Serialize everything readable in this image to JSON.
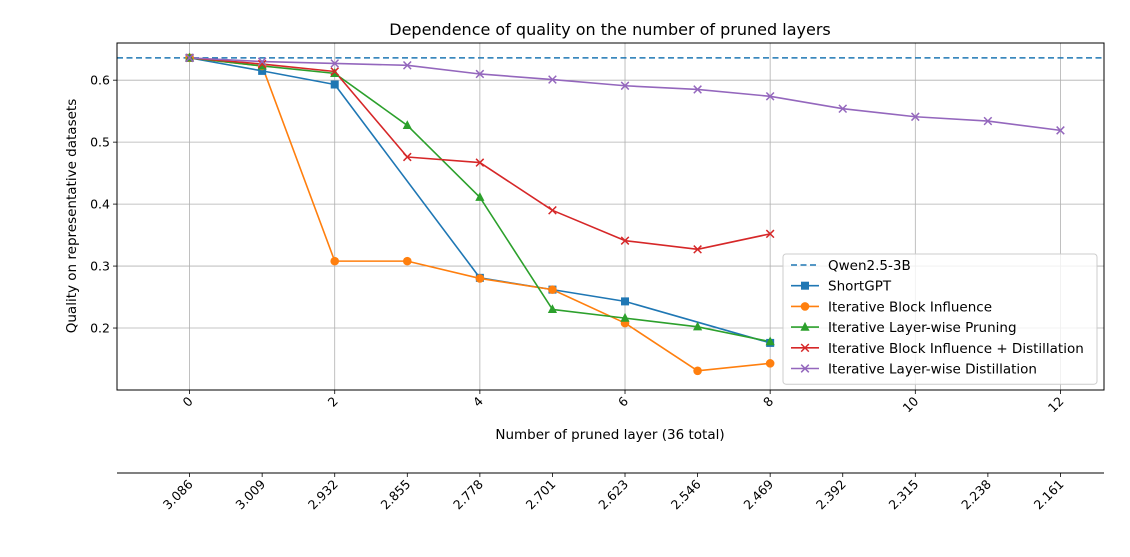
{
  "chart_data": {
    "type": "line",
    "title": "Dependence of quality on the number of pruned layers",
    "xlabel": "Number of pruned layer (36 total)",
    "ylabel": "Quality on representative datasets",
    "xlim": [
      -1,
      12.6
    ],
    "ylim": [
      0.1,
      0.66
    ],
    "grid": true,
    "legend_position": "lower-right",
    "x_ticks": [
      0,
      2,
      4,
      6,
      8,
      10,
      12
    ],
    "x_tick_labels": [
      "0",
      "2",
      "4",
      "6",
      "8",
      "10",
      "12"
    ],
    "y_ticks": [
      0.2,
      0.3,
      0.4,
      0.5,
      0.6
    ],
    "y_tick_labels": [
      "0.2",
      "0.3",
      "0.4",
      "0.5",
      "0.6"
    ],
    "secondary_x_ticks": [
      0,
      1,
      2,
      3,
      4,
      5,
      6,
      7,
      8,
      9,
      10,
      11,
      12
    ],
    "secondary_x_tick_labels": [
      "3.086",
      "3.009",
      "2.932",
      "2.855",
      "2.778",
      "2.701",
      "2.623",
      "2.546",
      "2.469",
      "2.392",
      "2.315",
      "2.238",
      "2.161"
    ],
    "reference_line": {
      "name": "Qwen2.5-3B",
      "y": 0.636,
      "color": "#1f77b4",
      "style": "dashed"
    },
    "series": [
      {
        "name": "ShortGPT",
        "color": "#1f77b4",
        "marker": "square",
        "x": [
          0,
          1,
          2,
          4,
          5,
          6,
          8
        ],
        "values": [
          0.636,
          0.615,
          0.593,
          0.281,
          0.262,
          0.243,
          0.176
        ]
      },
      {
        "name": "Iterative Block Influence",
        "color": "#ff7f0e",
        "marker": "circle",
        "x": [
          0,
          1,
          2,
          3,
          4,
          5,
          6,
          7,
          8
        ],
        "values": [
          0.636,
          0.623,
          0.308,
          0.308,
          0.28,
          0.262,
          0.208,
          0.131,
          0.143
        ]
      },
      {
        "name": "Iterative Layer-wise Pruning",
        "color": "#2ca02c",
        "marker": "triangle",
        "x": [
          0,
          1,
          2,
          3,
          4,
          5,
          6,
          7,
          8
        ],
        "values": [
          0.636,
          0.623,
          0.611,
          0.527,
          0.411,
          0.23,
          0.216,
          0.202,
          0.178
        ]
      },
      {
        "name": "Iterative Block Influence + Distillation",
        "color": "#d62728",
        "marker": "x",
        "x": [
          0,
          1,
          2,
          3,
          4,
          5,
          6,
          7,
          8
        ],
        "values": [
          0.636,
          0.626,
          0.614,
          0.476,
          0.467,
          0.39,
          0.341,
          0.327,
          0.352
        ]
      },
      {
        "name": "Iterative Layer-wise Distillation",
        "color": "#9467bd",
        "marker": "x",
        "x": [
          0,
          1,
          2,
          3,
          4,
          5,
          6,
          7,
          8,
          9,
          10,
          11,
          12
        ],
        "values": [
          0.636,
          0.63,
          0.627,
          0.624,
          0.61,
          0.601,
          0.591,
          0.585,
          0.574,
          0.554,
          0.541,
          0.534,
          0.519
        ]
      }
    ]
  }
}
